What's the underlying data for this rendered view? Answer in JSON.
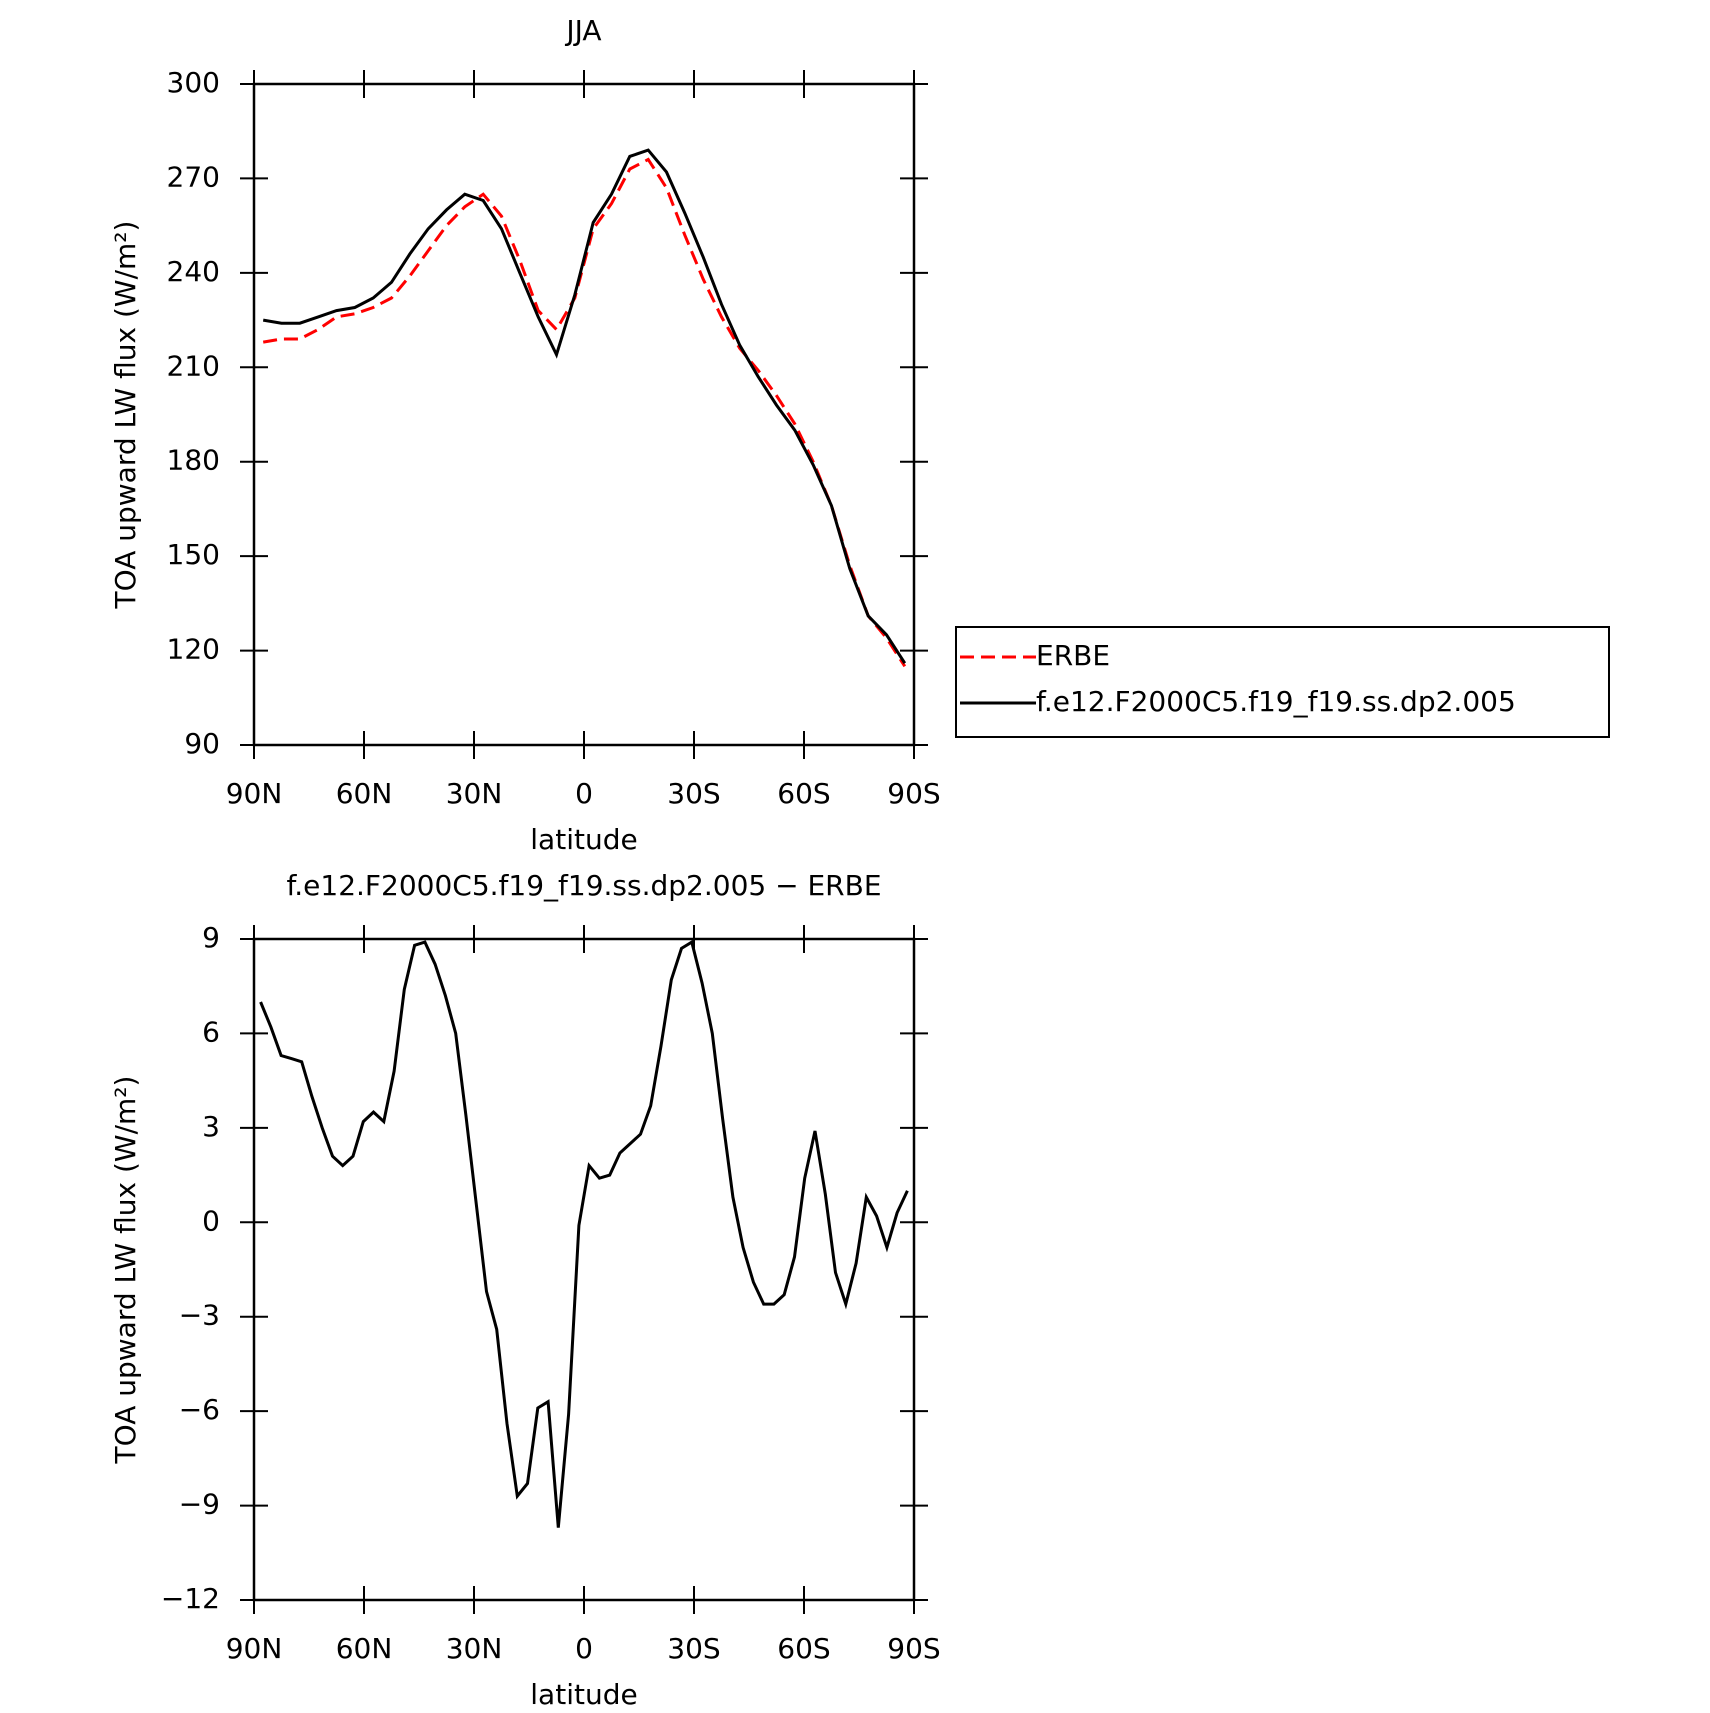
{
  "chart_data": [
    {
      "type": "line",
      "title": "JJA",
      "xlabel": "latitude",
      "ylabel": "TOA upward LW flux (W/m²)",
      "x": [
        87.5,
        82.5,
        77.5,
        72.5,
        67.5,
        62.5,
        57.5,
        52.5,
        47.5,
        42.5,
        37.5,
        32.5,
        27.5,
        22.5,
        17.5,
        12.5,
        7.5,
        2.5,
        -2.5,
        -7.5,
        -12.5,
        -17.5,
        -22.5,
        -27.5,
        -32.5,
        -37.5,
        -42.5,
        -47.5,
        -52.5,
        -57.5,
        -62.5,
        -67.5,
        -72.5,
        -77.5,
        -82.5,
        -87.5
      ],
      "series": [
        {
          "name": "ERBE",
          "color": "#ff0000",
          "style": "dashed",
          "values": [
            218,
            219,
            219,
            222,
            226,
            227,
            229,
            232,
            239,
            247,
            255,
            261,
            265,
            258,
            244,
            228,
            222,
            232,
            254,
            262,
            273,
            276,
            267,
            252,
            238,
            226,
            216,
            209,
            201,
            192,
            180,
            166,
            147,
            131,
            124,
            115
          ]
        },
        {
          "name": "f.e12.F2000C5.f19_f19.ss.dp2.005",
          "color": "#000000",
          "style": "solid",
          "values": [
            225,
            224,
            224,
            226,
            228,
            229,
            232,
            237,
            246,
            254,
            260,
            265,
            263,
            254,
            240,
            226,
            214,
            233,
            256,
            265,
            277,
            279,
            272,
            259,
            245,
            230,
            217,
            207,
            198,
            190,
            179,
            166,
            146,
            131,
            125,
            116
          ]
        }
      ],
      "xlim": [
        90,
        -90
      ],
      "xticks": [
        {
          "value": 90,
          "label": "90N"
        },
        {
          "value": 60,
          "label": "60N"
        },
        {
          "value": 30,
          "label": "30N"
        },
        0,
        {
          "value": -30,
          "label": "30S"
        },
        {
          "value": -60,
          "label": "60S"
        },
        {
          "value": -90,
          "label": "90S"
        }
      ],
      "ylim": [
        90,
        300
      ],
      "yticks": [
        90,
        120,
        150,
        180,
        210,
        240,
        270,
        300
      ],
      "legend": "outside-right"
    },
    {
      "type": "line",
      "title": "f.e12.F2000C5.f19_f19.ss.dp2.005 − ERBE",
      "xlabel": "latitude",
      "ylabel": "TOA upward LW flux (W/m²)",
      "x": [
        88.2,
        85.4,
        82.6,
        79.8,
        77,
        74.2,
        71.4,
        68.6,
        65.8,
        63,
        60.2,
        57.4,
        54.6,
        51.8,
        49,
        46.2,
        43.4,
        40.6,
        37.8,
        35,
        32.2,
        29.4,
        26.6,
        23.8,
        21,
        18.2,
        15.4,
        12.6,
        9.8,
        7,
        4.2,
        1.4,
        -1.4,
        -4.2,
        -7,
        -9.8,
        -12.6,
        -15.4,
        -18.2,
        -21,
        -23.8,
        -26.6,
        -29.4,
        -32.2,
        -35,
        -37.8,
        -40.6,
        -43.4,
        -46.2,
        -49,
        -51.8,
        -54.6,
        -57.4,
        -60.2,
        -63,
        -65.8,
        -68.6,
        -71.4,
        -74.2,
        -77,
        -79.8,
        -82.6,
        -85.4,
        -88.2
      ],
      "values": [
        7.0,
        6.2,
        5.3,
        5.2,
        5.1,
        4.0,
        3.0,
        2.1,
        1.8,
        2.1,
        3.2,
        3.5,
        3.2,
        4.8,
        7.4,
        8.8,
        8.9,
        8.2,
        7.2,
        6.0,
        3.4,
        0.6,
        -2.2,
        -3.4,
        -6.4,
        -8.7,
        -8.3,
        -5.9,
        -5.7,
        -9.7,
        -6.1,
        -0.1,
        1.8,
        1.4,
        1.5,
        2.2,
        2.5,
        2.8,
        3.7,
        5.6,
        7.7,
        8.7,
        8.9,
        7.6,
        6.0,
        3.3,
        0.8,
        -0.8,
        -1.9,
        -2.6,
        -2.6,
        -2.3,
        -1.1,
        1.4,
        2.9,
        0.9,
        -1.6,
        -2.6,
        -1.3,
        0.8,
        0.2,
        -0.8,
        0.3,
        1.0
      ],
      "color": "#000000",
      "xlim": [
        90,
        -90
      ],
      "xticks": [
        {
          "value": 90,
          "label": "90N"
        },
        {
          "value": 60,
          "label": "60N"
        },
        {
          "value": 30,
          "label": "30N"
        },
        0,
        {
          "value": -30,
          "label": "30S"
        },
        {
          "value": -60,
          "label": "60S"
        },
        {
          "value": -90,
          "label": "90S"
        }
      ],
      "ylim": [
        -12,
        9
      ],
      "yticks": [
        {
          "value": -12,
          "label": "−12"
        },
        {
          "value": -9,
          "label": "−9"
        },
        {
          "value": -6,
          "label": "−6"
        },
        {
          "value": -3,
          "label": "−3"
        },
        0,
        3,
        6,
        9
      ]
    }
  ]
}
